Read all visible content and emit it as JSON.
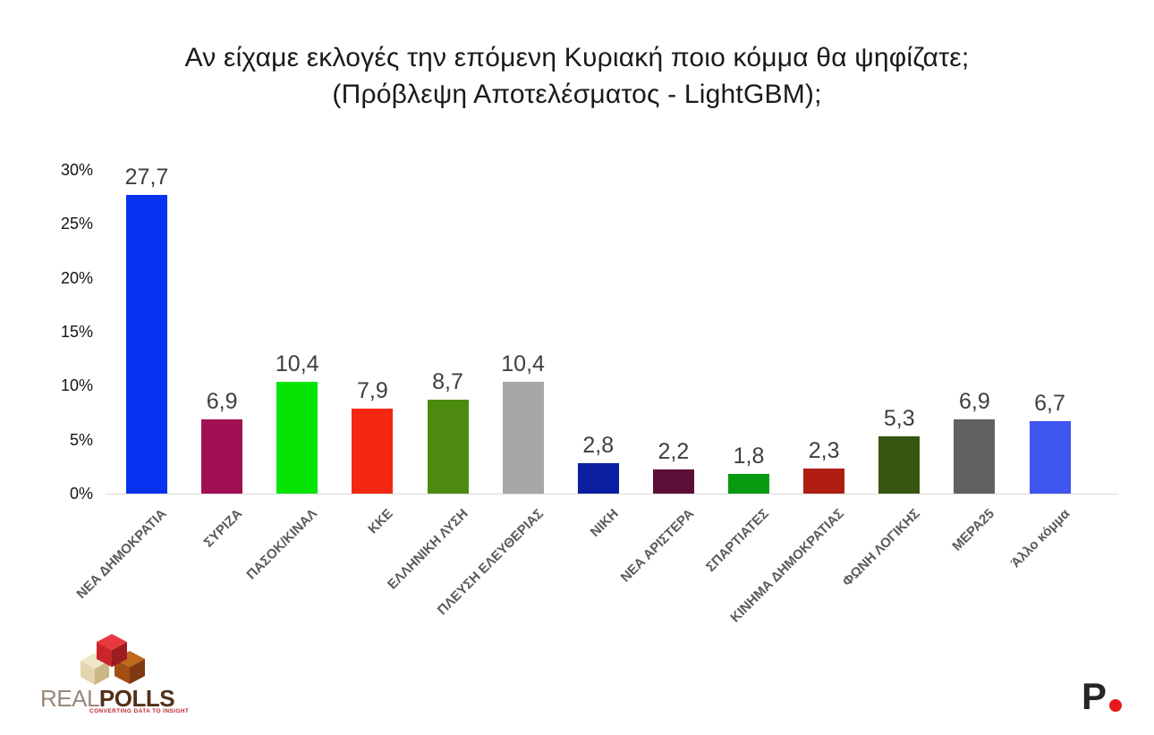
{
  "title": {
    "line1": "Αν είχαμε εκλογές την επόμενη Κυριακή ποιο κόμμα θα ψηφίζατε;",
    "line2": "(Πρόβλεψη Αποτελέσματος - LightGBM);"
  },
  "chart_data": {
    "type": "bar",
    "title": "Αν είχαμε εκλογές την επόμενη Κυριακή ποιο κόμμα θα ψηφίζατε; (Πρόβλεψη Αποτελέσματος - LightGBM);",
    "categories": [
      "ΝΕΑ ΔΗΜΟΚΡΑΤΙΑ",
      "ΣΥΡΙΖΑ",
      "ΠΑΣΟΚ/ΚΙΝΑΛ",
      "ΚΚΕ",
      "ΕΛΛΗΝΙΚΗ ΛΥΣΗ",
      "ΠΛΕΥΣΗ ΕΛΕΥΘΕΡΙΑΣ",
      "ΝΙΚΗ",
      "ΝΕΑ ΑΡΙΣΤΕΡΑ",
      "ΣΠΑΡΤΙΑΤΕΣ",
      "ΚΙΝΗΜΑ ΔΗΜΟΚΡΑΤΙΑΣ",
      "ΦΩΝΗ ΛΟΓΙΚΗΣ",
      "ΜΕΡΑ25",
      "Άλλο κόμμα"
    ],
    "values": [
      27.7,
      6.9,
      10.4,
      7.9,
      8.7,
      10.4,
      2.8,
      2.2,
      1.8,
      2.3,
      5.3,
      6.9,
      6.7
    ],
    "value_labels": [
      "27,7",
      "6,9",
      "10,4",
      "7,9",
      "8,7",
      "10,4",
      "2,8",
      "2,2",
      "1,8",
      "2,3",
      "5,3",
      "6,9",
      "6,7"
    ],
    "bar_colors": [
      "#0733f0",
      "#a01052",
      "#06e406",
      "#f52713",
      "#4c8b10",
      "#a7a7a7",
      "#0b1fa0",
      "#5a1038",
      "#079b12",
      "#af1d10",
      "#375510",
      "#616161",
      "#3f56f0"
    ],
    "xlabel": "",
    "ylabel": "",
    "ylim": [
      0,
      30
    ],
    "ytick_step": 5,
    "ytick_labels": [
      "0%",
      "5%",
      "10%",
      "15%",
      "20%",
      "25%",
      "30%"
    ],
    "grid": false,
    "legend": "none"
  },
  "branding": {
    "realpolls": {
      "name_part1": "REAL",
      "name_part2": "POLLS",
      "tagline": "CONVERTING DATA TO INSIGHT"
    },
    "p_logo": {
      "letter": "P"
    }
  },
  "colors": {
    "background": "#ffffff",
    "title_text": "#1a1a1a",
    "value_label_text": "#3f3f3f",
    "ytick_text": "#141414",
    "xlabel_text": "#5a5a5a",
    "axis_line": "#d9d9d9",
    "realpolls_red_cube": "#c9252b",
    "realpolls_cream_cube": "#e3d5ac",
    "realpolls_brown_cube": "#a34d15",
    "realpolls_tagline": "#c0272d",
    "p_logo_dot": "#e8191c"
  }
}
